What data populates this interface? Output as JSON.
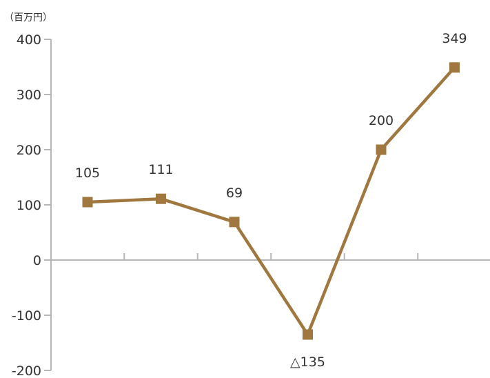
{
  "chart_data": {
    "type": "line",
    "unit_label": "（百万円）",
    "x": [
      1,
      2,
      3,
      4,
      5,
      6
    ],
    "series": [
      {
        "values": [
          105,
          111,
          69,
          -135,
          200,
          349
        ],
        "labels": [
          "105",
          "111",
          "69",
          "△135",
          "200",
          "349"
        ],
        "color": "#a0773e"
      }
    ],
    "ylim": [
      -200,
      400
    ],
    "yticks": [
      400,
      300,
      200,
      100,
      0,
      -100,
      -200
    ],
    "ytick_labels": [
      "400",
      "300",
      "200",
      "100",
      "0",
      "-100",
      "-200"
    ],
    "axis_color": "#b5b5b5",
    "grid": false
  }
}
